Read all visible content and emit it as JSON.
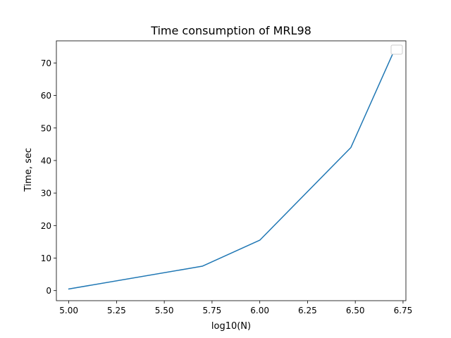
{
  "chart_data": {
    "type": "line",
    "title": "Time consumption of MRL98",
    "xlabel": "log10(N)",
    "ylabel": "Time, sec",
    "xlim": [
      4.935,
      6.765
    ],
    "ylim": [
      -3.1,
      76.8
    ],
    "xticks": [
      5.0,
      5.25,
      5.5,
      5.75,
      6.0,
      6.25,
      6.5,
      6.75
    ],
    "xtick_labels": [
      "5.00",
      "5.25",
      "5.50",
      "5.75",
      "6.00",
      "6.25",
      "6.50",
      "6.75"
    ],
    "yticks": [
      0,
      10,
      20,
      30,
      40,
      50,
      60,
      70
    ],
    "ytick_labels": [
      "0",
      "10",
      "20",
      "30",
      "40",
      "50",
      "60",
      "70"
    ],
    "grid": false,
    "legend": {
      "position": "upper right",
      "entries": []
    },
    "series": [
      {
        "color": "#1f77b4",
        "x": [
          5.0,
          5.699,
          6.0,
          6.477,
          6.699
        ],
        "y": [
          0.5,
          7.5,
          15.5,
          44.0,
          73.2
        ]
      }
    ]
  }
}
